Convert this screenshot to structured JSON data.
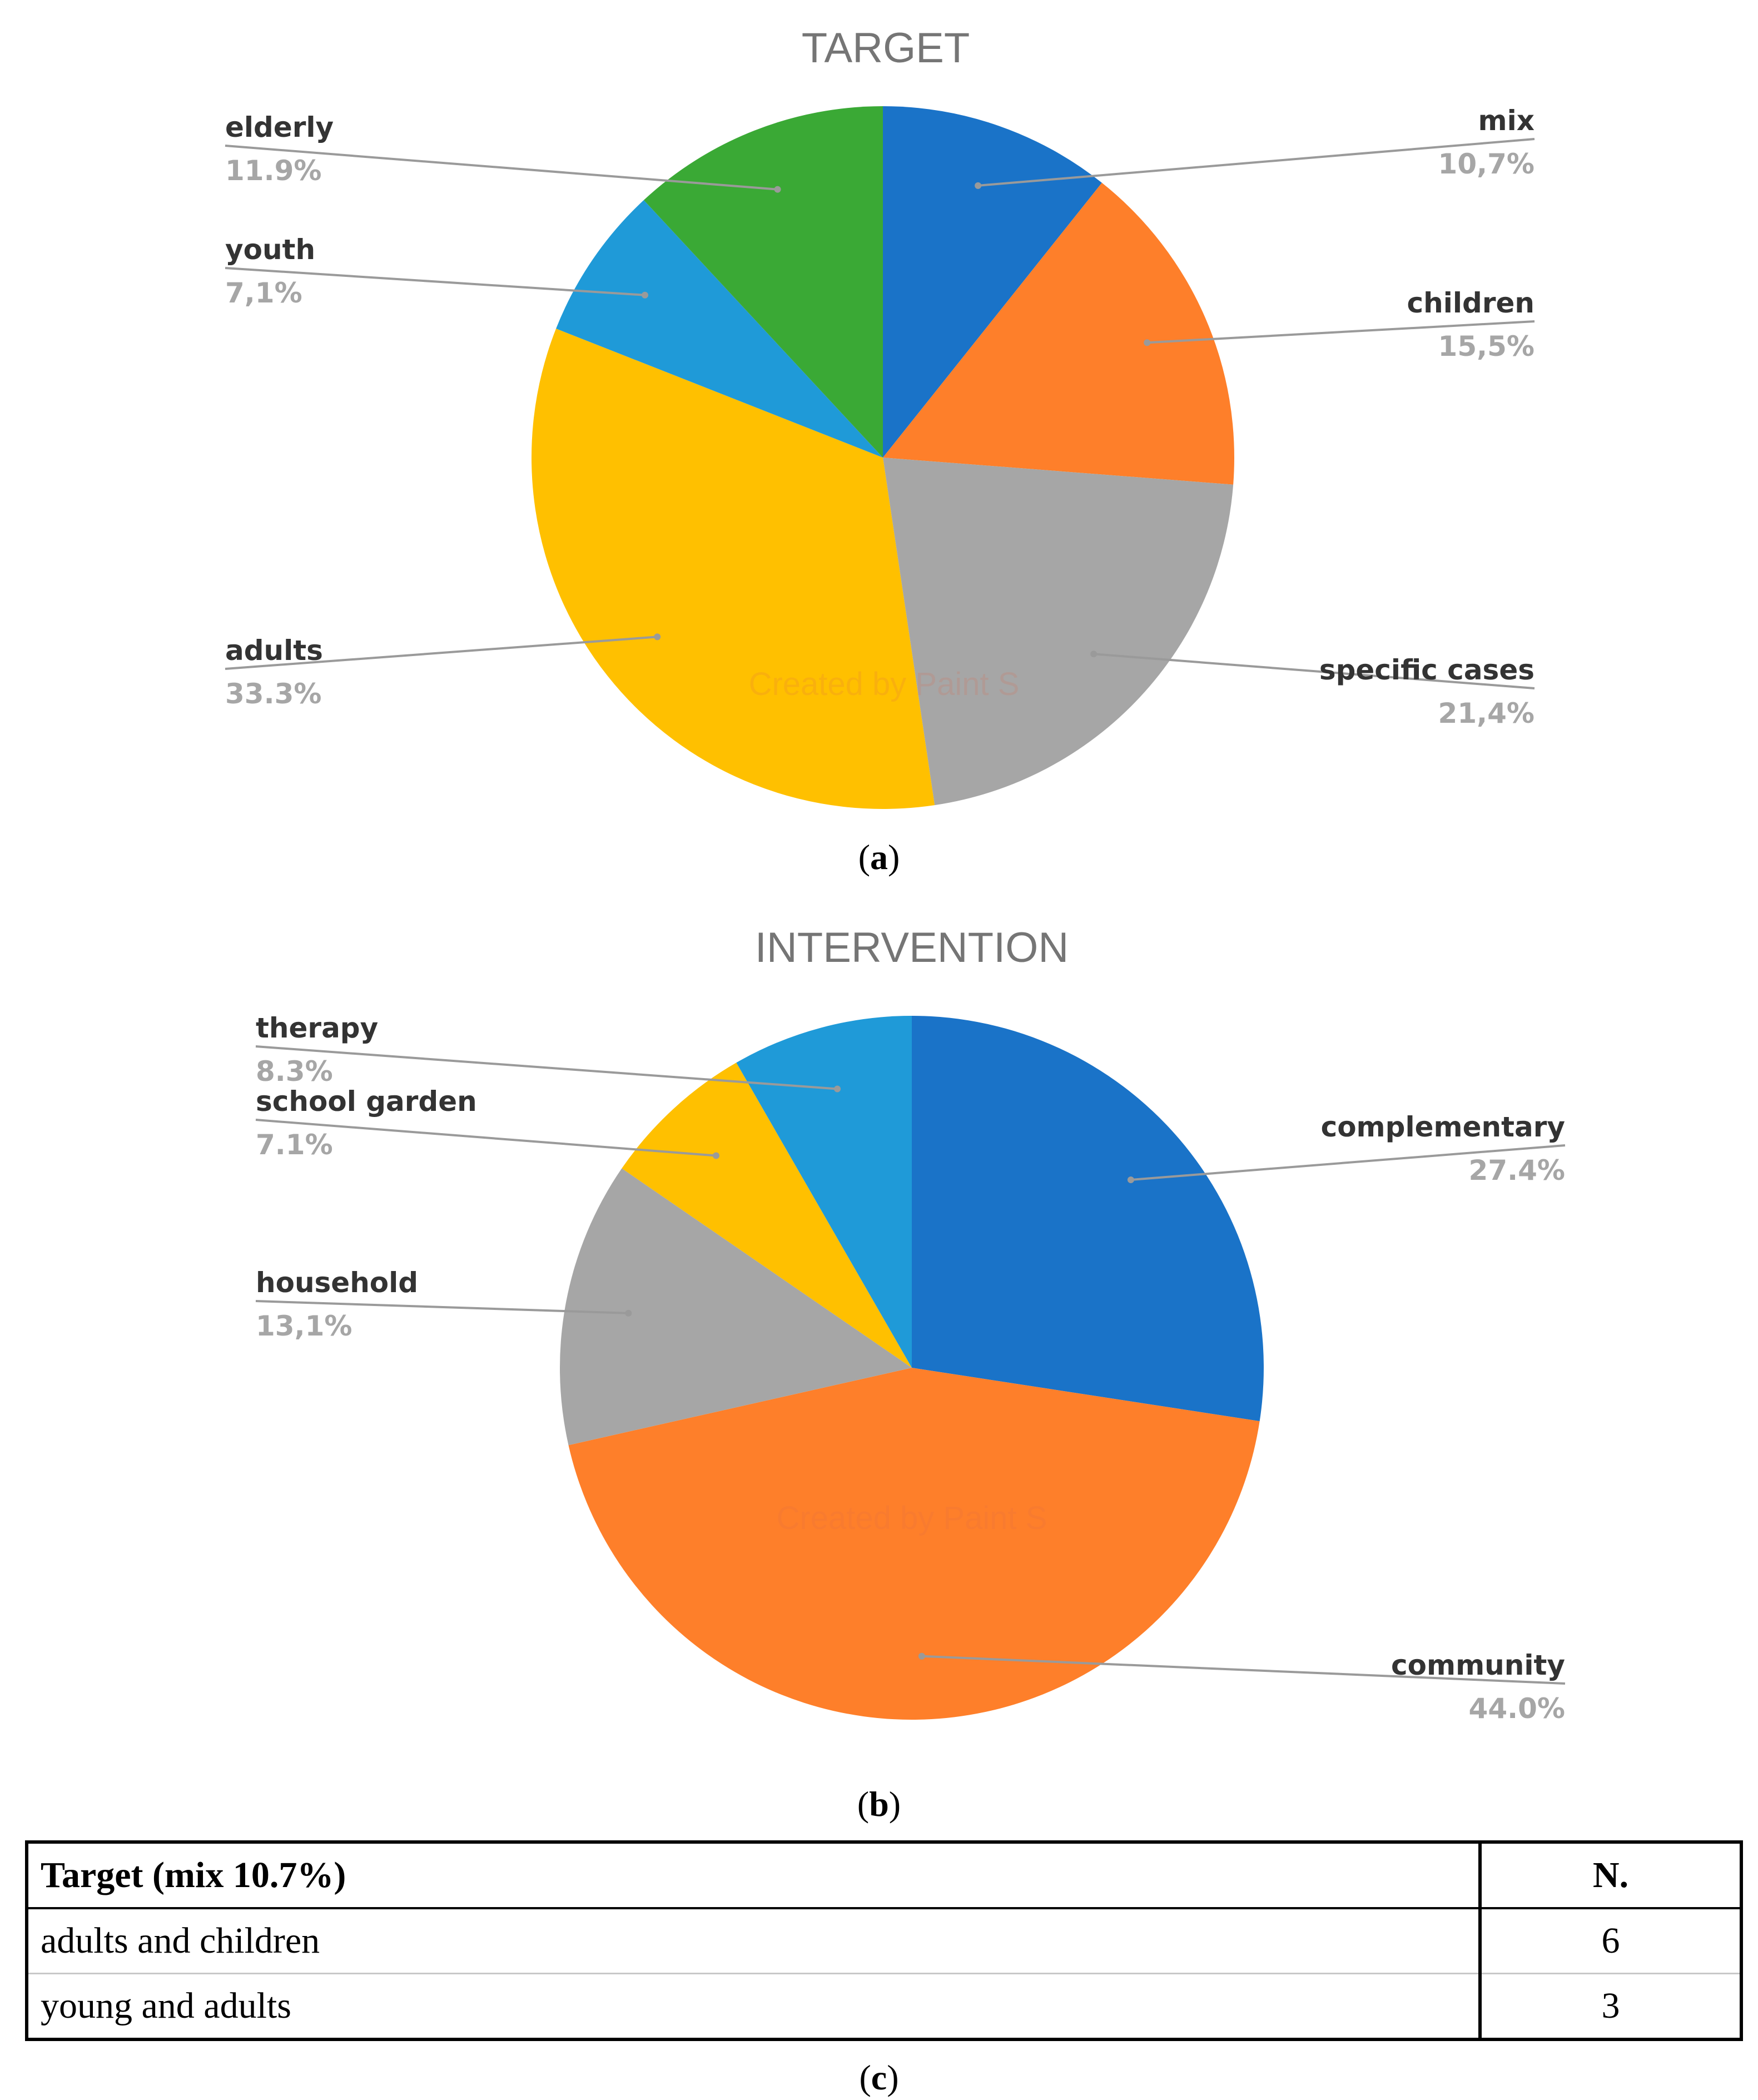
{
  "panel_a": {
    "caption_letter": "a"
  },
  "panel_b": {
    "caption_letter": "b"
  },
  "panel_c": {
    "caption_letter": "c"
  },
  "chart_data": [
    {
      "type": "pie",
      "title": "TARGET",
      "watermark": "Created by Paint S",
      "slices": [
        {
          "label": "mix",
          "value_label": "10,7%",
          "value": 10.7,
          "color": "#1a73c8"
        },
        {
          "label": "children",
          "value_label": "15,5%",
          "value": 15.5,
          "color": "#fe7f2a"
        },
        {
          "label": "specific cases",
          "value_label": "21,4%",
          "value": 21.4,
          "color": "#a6a6a6"
        },
        {
          "label": "adults",
          "value_label": "33.3%",
          "value": 33.3,
          "color": "#ffc000"
        },
        {
          "label": "youth",
          "value_label": "7,1%",
          "value": 7.1,
          "color": "#1f9ad8"
        },
        {
          "label": "elderly",
          "value_label": "11.9%",
          "value": 11.9,
          "color": "#3aa935"
        }
      ]
    },
    {
      "type": "pie",
      "title": "INTERVENTION",
      "watermark": "Created by Paint S",
      "slices": [
        {
          "label": "complementary",
          "value_label": "27.4%",
          "value": 27.4,
          "color": "#1a73c8"
        },
        {
          "label": "community",
          "value_label": "44.0%",
          "value": 44.0,
          "color": "#fe7f2a"
        },
        {
          "label": "household",
          "value_label": "13,1%",
          "value": 13.1,
          "color": "#a6a6a6"
        },
        {
          "label": "school garden",
          "value_label": "7.1%",
          "value": 7.1,
          "color": "#ffc000"
        },
        {
          "label": "therapy",
          "value_label": "8.3%",
          "value": 8.3,
          "color": "#1f9ad8"
        }
      ]
    },
    {
      "type": "table",
      "columns": [
        "Target (mix 10.7%)",
        "N."
      ],
      "rows": [
        [
          "adults and children",
          "6"
        ],
        [
          "young and adults",
          "3"
        ]
      ]
    }
  ]
}
